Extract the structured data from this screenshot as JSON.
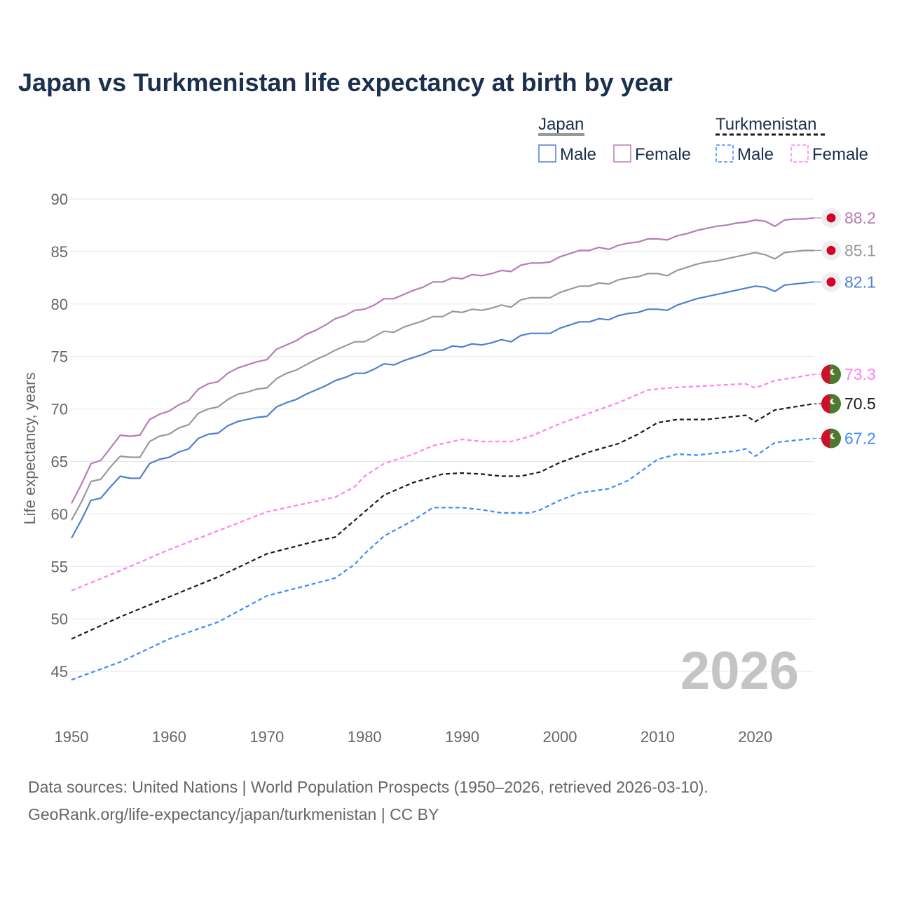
{
  "chart_data": {
    "type": "line",
    "title": "Japan vs Turkmenistan life expectancy at birth by year",
    "xlabel": "",
    "ylabel": "Life expectancy, years",
    "xlim": [
      1950,
      2026
    ],
    "ylim": [
      42,
      91
    ],
    "x_ticks": [
      1950,
      1960,
      1970,
      1980,
      1990,
      2000,
      2010,
      2020
    ],
    "x_tick_labels": [
      "1950",
      "1960",
      "1970",
      "1980",
      "1990",
      "2000",
      "2010",
      "2020"
    ],
    "y_ticks": [
      45,
      50,
      55,
      60,
      65,
      70,
      75,
      80,
      85,
      90
    ],
    "y_tick_labels": [
      "45",
      "50",
      "55",
      "60",
      "65",
      "70",
      "75",
      "80",
      "85",
      "90"
    ],
    "grid": true,
    "legend_placement": "top-right",
    "legend": {
      "groups": [
        {
          "name": "Japan",
          "items": [
            "Male",
            "Female"
          ]
        },
        {
          "name": "Turkmenistan",
          "items": [
            "Male",
            "Female"
          ]
        }
      ]
    },
    "year_watermark": "2026",
    "series": [
      {
        "name": "Japan Female",
        "country": "Japan",
        "sex": "Female",
        "color": "#b77cba",
        "dashed": false,
        "end_label": "88.2",
        "x_start": 1950,
        "values": [
          61.0,
          62.8,
          64.8,
          65.1,
          66.3,
          67.5,
          67.4,
          67.5,
          69.0,
          69.5,
          69.8,
          70.4,
          70.8,
          71.9,
          72.4,
          72.6,
          73.4,
          73.9,
          74.2,
          74.5,
          74.7,
          75.7,
          76.1,
          76.5,
          77.1,
          77.5,
          78.0,
          78.6,
          78.9,
          79.4,
          79.5,
          79.9,
          80.5,
          80.5,
          80.9,
          81.3,
          81.6,
          82.1,
          82.1,
          82.5,
          82.4,
          82.8,
          82.7,
          82.9,
          83.2,
          83.1,
          83.7,
          83.9,
          83.9,
          84.0,
          84.5,
          84.8,
          85.1,
          85.1,
          85.4,
          85.2,
          85.6,
          85.8,
          85.9,
          86.2,
          86.2,
          86.1,
          86.5,
          86.7,
          87.0,
          87.2,
          87.4,
          87.5,
          87.7,
          87.8,
          88.0,
          87.9,
          87.4,
          88.0,
          88.1,
          88.1,
          88.2
        ]
      },
      {
        "name": "Japan",
        "country": "Japan",
        "sex": "Total",
        "color": "#999999",
        "dashed": false,
        "end_label": "85.1",
        "x_start": 1950,
        "values": [
          59.4,
          61.1,
          63.1,
          63.3,
          64.5,
          65.5,
          65.4,
          65.4,
          66.9,
          67.4,
          67.6,
          68.2,
          68.5,
          69.6,
          70.0,
          70.2,
          70.9,
          71.4,
          71.6,
          71.9,
          72.0,
          72.9,
          73.4,
          73.7,
          74.2,
          74.7,
          75.1,
          75.6,
          76.0,
          76.4,
          76.4,
          76.9,
          77.4,
          77.3,
          77.8,
          78.1,
          78.4,
          78.8,
          78.8,
          79.3,
          79.2,
          79.5,
          79.4,
          79.6,
          79.9,
          79.7,
          80.4,
          80.6,
          80.6,
          80.6,
          81.1,
          81.4,
          81.7,
          81.7,
          82.0,
          81.9,
          82.3,
          82.5,
          82.6,
          82.9,
          82.9,
          82.7,
          83.2,
          83.5,
          83.8,
          84.0,
          84.1,
          84.3,
          84.5,
          84.7,
          84.9,
          84.7,
          84.3,
          84.9,
          85.0,
          85.1,
          85.1
        ]
      },
      {
        "name": "Japan Male",
        "country": "Japan",
        "sex": "Male",
        "color": "#4f7fd1",
        "dashed": false,
        "end_label": "82.1",
        "x_start": 1950,
        "values": [
          57.7,
          59.4,
          61.3,
          61.5,
          62.6,
          63.6,
          63.4,
          63.4,
          64.8,
          65.2,
          65.4,
          65.9,
          66.2,
          67.2,
          67.6,
          67.7,
          68.4,
          68.8,
          69.0,
          69.2,
          69.3,
          70.2,
          70.6,
          70.9,
          71.4,
          71.8,
          72.2,
          72.7,
          73.0,
          73.4,
          73.4,
          73.8,
          74.3,
          74.2,
          74.6,
          74.9,
          75.2,
          75.6,
          75.6,
          76.0,
          75.9,
          76.2,
          76.1,
          76.3,
          76.6,
          76.4,
          77.0,
          77.2,
          77.2,
          77.2,
          77.7,
          78.0,
          78.3,
          78.3,
          78.6,
          78.5,
          78.9,
          79.1,
          79.2,
          79.5,
          79.5,
          79.4,
          79.9,
          80.2,
          80.5,
          80.7,
          80.9,
          81.1,
          81.3,
          81.5,
          81.7,
          81.6,
          81.2,
          81.8,
          81.9,
          82.0,
          82.1
        ]
      },
      {
        "name": "Turkmenistan Female",
        "country": "Turkmenistan",
        "sex": "Female",
        "color": "#ff80f2",
        "dashed": true,
        "end_label": "73.3",
        "x": [
          1950,
          1955,
          1960,
          1965,
          1970,
          1975,
          1977,
          1979,
          1980,
          1982,
          1985,
          1987,
          1990,
          1992,
          1995,
          1997,
          2000,
          2003,
          2006,
          2009,
          2011,
          2015,
          2019,
          2020,
          2022,
          2026
        ],
        "values": [
          52.7,
          54.6,
          56.6,
          58.4,
          60.2,
          61.2,
          61.6,
          62.6,
          63.6,
          64.8,
          65.7,
          66.5,
          67.1,
          66.9,
          66.9,
          67.4,
          68.6,
          69.6,
          70.6,
          71.8,
          72.0,
          72.2,
          72.4,
          72.0,
          72.7,
          73.3
        ]
      },
      {
        "name": "Turkmenistan",
        "country": "Turkmenistan",
        "sex": "Total",
        "color": "#1a1a1a",
        "dashed": true,
        "end_label": "70.5",
        "x": [
          1950,
          1955,
          1960,
          1965,
          1970,
          1975,
          1977,
          1980,
          1982,
          1985,
          1988,
          1990,
          1992,
          1994,
          1996,
          1998,
          2000,
          2003,
          2006,
          2008,
          2010,
          2012,
          2015,
          2019,
          2020,
          2022,
          2024,
          2026
        ],
        "values": [
          48.1,
          50.2,
          52.1,
          54.0,
          56.2,
          57.4,
          57.8,
          60.2,
          61.8,
          63.0,
          63.8,
          63.9,
          63.8,
          63.6,
          63.6,
          64.0,
          64.9,
          65.9,
          66.7,
          67.6,
          68.7,
          69.0,
          69.0,
          69.4,
          68.8,
          69.9,
          70.2,
          70.5
        ]
      },
      {
        "name": "Turkmenistan Male",
        "country": "Turkmenistan",
        "sex": "Male",
        "color": "#3d8cff",
        "dashed": true,
        "end_label": "67.2",
        "x": [
          1950,
          1955,
          1960,
          1965,
          1970,
          1975,
          1977,
          1979,
          1980,
          1982,
          1985,
          1987,
          1990,
          1992,
          1994,
          1997,
          1998,
          2000,
          2002,
          2005,
          2007,
          2010,
          2012,
          2014,
          2018,
          2019,
          2020,
          2022,
          2024,
          2026
        ],
        "values": [
          44.2,
          45.9,
          48.1,
          49.7,
          52.2,
          53.4,
          53.9,
          55.2,
          56.2,
          57.9,
          59.4,
          60.6,
          60.6,
          60.4,
          60.1,
          60.1,
          60.4,
          61.3,
          62.0,
          62.4,
          63.2,
          65.2,
          65.7,
          65.6,
          66.0,
          66.2,
          65.5,
          66.8,
          67.0,
          67.2
        ]
      }
    ]
  },
  "footer": {
    "line1": "Data sources: United Nations | World Population Prospects (1950–2026, retrieved 2026-03-10).",
    "line2": "GeoRank.org/life-expectancy/japan/turkmenistan | CC BY"
  },
  "flags": {
    "japan": "japan-flag-icon",
    "turkmenistan": "turkmenistan-flag-icon"
  }
}
